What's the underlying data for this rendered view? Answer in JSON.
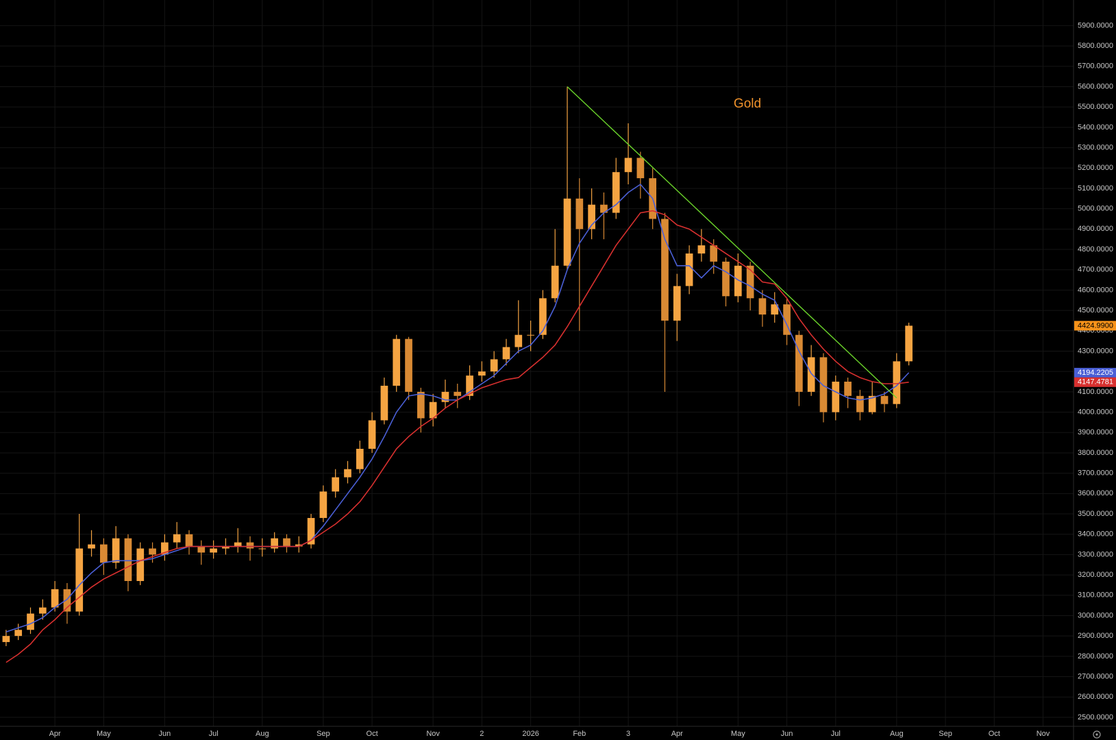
{
  "chart_data": {
    "type": "candlestick",
    "title": "Gold",
    "title_color": "#f0922b",
    "categories": [
      null,
      null,
      null,
      null,
      "Apr",
      null,
      null,
      null,
      "May",
      null,
      null,
      null,
      null,
      "Jun",
      null,
      null,
      null,
      "Jul",
      null,
      null,
      null,
      "Aug",
      null,
      null,
      null,
      null,
      "Sep",
      null,
      null,
      null,
      "Oct",
      null,
      null,
      null,
      null,
      "Nov",
      null,
      null,
      null,
      "2",
      null,
      null,
      null,
      "2026",
      null,
      null,
      null,
      "Feb",
      null,
      null,
      null,
      "3",
      null,
      null,
      null,
      "Apr",
      null,
      null,
      null,
      null,
      "May",
      null,
      null,
      null,
      "Jun",
      null,
      null,
      null,
      "Jul",
      null,
      null,
      null,
      null,
      "Aug",
      null,
      null,
      null,
      "Sep",
      null,
      null,
      null,
      "Oct",
      null,
      null,
      null,
      "Nov",
      null,
      null
    ],
    "open": [
      2870,
      2900,
      2930,
      3010,
      3040,
      3130,
      3020,
      3330,
      3350,
      3260,
      3380,
      3170,
      3330,
      3300,
      3360,
      3400,
      3340,
      3310,
      3330,
      3340,
      3360,
      3330,
      3330,
      3380,
      3340,
      3350,
      3480,
      3610,
      3680,
      3720,
      3820,
      3960,
      4130,
      4360,
      4100,
      3970,
      4050,
      4100,
      4080,
      4180,
      4200,
      4260,
      4320,
      4380,
      4380,
      4560,
      4720,
      5050,
      4900,
      5020,
      4980,
      5180,
      5250,
      5150,
      4950,
      4450,
      4620,
      4780,
      4820,
      4740,
      4570,
      4720,
      4560,
      4480,
      4530,
      4380,
      4100,
      4270,
      4000,
      4150,
      4080,
      4000,
      4080,
      4040,
      4250,
      null,
      null,
      null,
      null,
      null,
      null,
      null,
      null,
      null,
      null,
      null,
      null,
      null
    ],
    "high": [
      2930,
      2960,
      3040,
      3080,
      3170,
      3160,
      3500,
      3420,
      3380,
      3440,
      3400,
      3360,
      3360,
      3400,
      3460,
      3420,
      3370,
      3370,
      3380,
      3430,
      3390,
      3380,
      3410,
      3400,
      3390,
      3500,
      3640,
      3720,
      3760,
      3860,
      4000,
      4170,
      4380,
      4370,
      4120,
      4090,
      4160,
      4140,
      4230,
      4250,
      4300,
      4360,
      4550,
      4450,
      4600,
      4900,
      5600,
      5150,
      5100,
      5080,
      5250,
      5420,
      5280,
      5200,
      4980,
      4680,
      4820,
      4900,
      4850,
      4760,
      4780,
      4740,
      4600,
      4590,
      4560,
      4400,
      4330,
      4290,
      4180,
      4170,
      4110,
      4150,
      4100,
      4290,
      4440,
      null,
      null,
      null,
      null,
      null,
      null,
      null,
      null,
      null,
      null,
      null,
      null,
      null
    ],
    "low": [
      2850,
      2880,
      2910,
      2980,
      3020,
      2960,
      3000,
      3290,
      3200,
      3230,
      3120,
      3150,
      3260,
      3270,
      3330,
      3300,
      3250,
      3280,
      3300,
      3310,
      3270,
      3290,
      3310,
      3310,
      3310,
      3330,
      3460,
      3580,
      3650,
      3700,
      3800,
      3940,
      4100,
      4060,
      3900,
      3930,
      4020,
      4020,
      4060,
      4150,
      4170,
      4230,
      4290,
      4300,
      4360,
      4540,
      4700,
      4400,
      4850,
      4850,
      4950,
      5120,
      5050,
      4900,
      4100,
      4350,
      4580,
      4740,
      4680,
      4520,
      4540,
      4500,
      4420,
      4440,
      4330,
      4030,
      4080,
      3950,
      3960,
      4020,
      3960,
      3990,
      4000,
      4020,
      4230,
      null,
      null,
      null,
      null,
      null,
      null,
      null,
      null,
      null,
      null,
      null,
      null,
      null
    ],
    "close": [
      2900,
      2930,
      3010,
      3040,
      3130,
      3020,
      3330,
      3350,
      3260,
      3380,
      3170,
      3330,
      3300,
      3360,
      3400,
      3340,
      3310,
      3330,
      3340,
      3360,
      3330,
      3330,
      3380,
      3340,
      3350,
      3480,
      3610,
      3680,
      3720,
      3820,
      3960,
      4130,
      4360,
      4100,
      3970,
      4050,
      4100,
      4080,
      4180,
      4200,
      4260,
      4320,
      4380,
      4380,
      4560,
      4720,
      5050,
      4900,
      5020,
      4980,
      5180,
      5250,
      5150,
      4950,
      4450,
      4620,
      4780,
      4820,
      4740,
      4570,
      4720,
      4560,
      4480,
      4530,
      4380,
      4100,
      4270,
      4000,
      4150,
      4080,
      4000,
      4080,
      4040,
      4250,
      4425,
      null,
      null,
      null,
      null,
      null,
      null,
      null,
      null,
      null,
      null,
      null,
      null,
      null
    ],
    "up_color": "#f5a442",
    "down_color": "#d98a34",
    "series": [
      {
        "color": "#4a5fd6",
        "values": [
          2920,
          2940,
          2960,
          2990,
          3040,
          3080,
          3150,
          3210,
          3260,
          3270,
          3270,
          3270,
          3280,
          3300,
          3320,
          3340,
          3340,
          3340,
          3340,
          3340,
          3340,
          3340,
          3340,
          3340,
          3340,
          3370,
          3440,
          3520,
          3600,
          3680,
          3770,
          3880,
          4000,
          4080,
          4090,
          4080,
          4060,
          4060,
          4100,
          4140,
          4180,
          4240,
          4300,
          4330,
          4400,
          4520,
          4700,
          4830,
          4920,
          4980,
          5020,
          5080,
          5120,
          5050,
          4850,
          4720,
          4720,
          4660,
          4720,
          4690,
          4650,
          4620,
          4580,
          4550,
          4430,
          4300,
          4190,
          4130,
          4100,
          4070,
          4060,
          4070,
          4090,
          4130,
          4194.22,
          null,
          null,
          null,
          null,
          null,
          null,
          null,
          null,
          null,
          null,
          null,
          null,
          null
        ]
      },
      {
        "color": "#d8302f",
        "values": [
          2770,
          2810,
          2860,
          2930,
          2980,
          3040,
          3090,
          3140,
          3180,
          3210,
          3240,
          3270,
          3290,
          3310,
          3330,
          3340,
          3340,
          3340,
          3340,
          3340,
          3340,
          3340,
          3340,
          3340,
          3340,
          3370,
          3410,
          3450,
          3500,
          3560,
          3640,
          3730,
          3820,
          3880,
          3930,
          3970,
          4020,
          4060,
          4090,
          4120,
          4140,
          4160,
          4170,
          4220,
          4270,
          4330,
          4420,
          4520,
          4620,
          4720,
          4820,
          4900,
          4980,
          4990,
          4970,
          4920,
          4900,
          4860,
          4820,
          4780,
          4740,
          4700,
          4640,
          4630,
          4560,
          4460,
          4380,
          4310,
          4250,
          4200,
          4170,
          4150,
          4140,
          4140,
          4147.48,
          null,
          null,
          null,
          null,
          null,
          null,
          null,
          null,
          null,
          null,
          null,
          null,
          null
        ]
      }
    ],
    "trendline": {
      "color": "#6bd42b",
      "x": [
        46,
        73
      ],
      "y": [
        5600,
        4070
      ]
    },
    "price_labels": [
      {
        "value": 4424.99,
        "label": "4424.9900",
        "color": "#f7931a",
        "text_color": "#000000"
      },
      {
        "value": 4194.2205,
        "label": "4194.2205",
        "color": "#4a5fd6",
        "text_color": "#ffffff"
      },
      {
        "value": 4147.4781,
        "label": "4147.4781",
        "color": "#d8302f",
        "text_color": "#ffffff"
      }
    ],
    "ylim": [
      2456,
      6026
    ],
    "yticks": [
      {
        "value": 2500,
        "label": "2500.0000"
      },
      {
        "value": 2600,
        "label": "2600.0000"
      },
      {
        "value": 2700,
        "label": "2700.0000"
      },
      {
        "value": 2800,
        "label": "2800.0000"
      },
      {
        "value": 2900,
        "label": "2900.0000"
      },
      {
        "value": 3000,
        "label": "3000.0000"
      },
      {
        "value": 3100,
        "label": "3100.0000"
      },
      {
        "value": 3200,
        "label": "3200.0000"
      },
      {
        "value": 3300,
        "label": "3300.0000"
      },
      {
        "value": 3400,
        "label": "3400.0000"
      },
      {
        "value": 3500,
        "label": "3500.0000"
      },
      {
        "value": 3600,
        "label": "3600.0000"
      },
      {
        "value": 3700,
        "label": "3700.0000"
      },
      {
        "value": 3800,
        "label": "3800.0000"
      },
      {
        "value": 3900,
        "label": "3900.0000"
      },
      {
        "value": 4000,
        "label": "4000.0000"
      },
      {
        "value": 4100,
        "label": "4100.0000"
      },
      {
        "value": 4200,
        "label": "4200.0000"
      },
      {
        "value": 4300,
        "label": "4300.0000"
      },
      {
        "value": 4400,
        "label": "4400.0000"
      },
      {
        "value": 4500,
        "label": "4500.0000"
      },
      {
        "value": 4600,
        "label": "4600.0000"
      },
      {
        "value": 4700,
        "label": "4700.0000"
      },
      {
        "value": 4800,
        "label": "4800.0000"
      },
      {
        "value": 4900,
        "label": "4900.0000"
      },
      {
        "value": 5000,
        "label": "5000.0000"
      },
      {
        "value": 5100,
        "label": "5100.0000"
      },
      {
        "value": 5200,
        "label": "5200.0000"
      },
      {
        "value": 5300,
        "label": "5300.0000"
      },
      {
        "value": 5400,
        "label": "5400.0000"
      },
      {
        "value": 5500,
        "label": "5500.0000"
      },
      {
        "value": 5600,
        "label": "5600.0000"
      },
      {
        "value": 5700,
        "label": "5700.0000"
      },
      {
        "value": 5800,
        "label": "5800.0000"
      },
      {
        "value": 5900,
        "label": "5900.0000"
      }
    ],
    "grid": true
  }
}
